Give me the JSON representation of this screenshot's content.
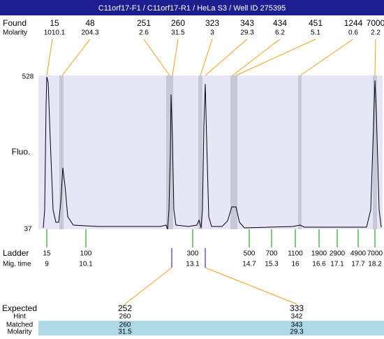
{
  "header": {
    "title": "C11orf17-F1 / C11orf17-R1 / HeLa S3 / Well ID 275395"
  },
  "found": {
    "label": "Found",
    "molarity_label": "Molarity",
    "sizes": [
      "15",
      "48",
      "251",
      "260",
      "323",
      "343",
      "434",
      "451",
      "1244",
      "7000"
    ],
    "molarities": [
      "1010.1",
      "204.3",
      "2.6",
      "31.5",
      "3",
      "29.3",
      "6.2",
      "5.1",
      "0.6",
      "2.2"
    ]
  },
  "axis": {
    "label": "Fluo.",
    "top": "528",
    "bottom": "37"
  },
  "ladder": {
    "label": "Ladder",
    "time_label": "Mig. time",
    "sizes": [
      "15",
      "100",
      "300",
      "500",
      "700",
      "1100",
      "1900",
      "2900",
      "4900",
      "7000"
    ],
    "times": [
      "9",
      "10.1",
      "13.1",
      "14.7",
      "15.3",
      "16",
      "16.6",
      "17.1",
      "17.7",
      "18.2"
    ]
  },
  "expected": {
    "row_labels": [
      "Expected",
      "Hint",
      "Matched",
      "Molarity"
    ],
    "columns": [
      [
        "252",
        "260",
        "260",
        "31.5"
      ],
      [
        "333",
        "342",
        "343",
        "29.3"
      ]
    ]
  }
}
